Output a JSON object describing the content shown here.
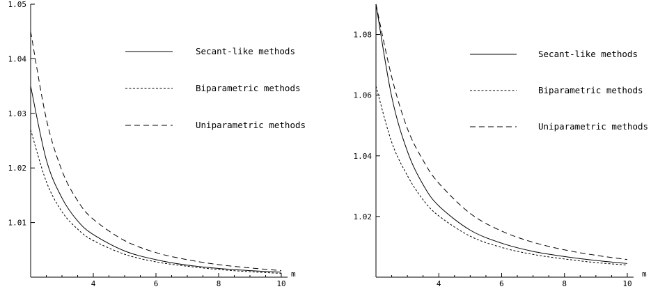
{
  "chart_data": [
    {
      "type": "line",
      "title": "",
      "xlabel": "m",
      "ylabel": "",
      "xlim": [
        2,
        10.2
      ],
      "ylim": [
        1.0,
        1.05
      ],
      "xticks": [
        4,
        6,
        8,
        10
      ],
      "yticks": [
        1.01,
        1.02,
        1.03,
        1.04,
        1.05
      ],
      "xtick_labels": [
        "4",
        "6",
        "8",
        "10"
      ],
      "ytick_labels": [
        "1.01",
        "1.02",
        "1.03",
        "1.04",
        "1.05"
      ],
      "grid": false,
      "legend": "top-right",
      "series": [
        {
          "name": "Secant-like methods",
          "style": "solid",
          "x": [
            2,
            2.5,
            3,
            3.5,
            4,
            5,
            6,
            7,
            8,
            9,
            10
          ],
          "y": [
            1.035,
            1.0215,
            1.0145,
            1.0103,
            1.0078,
            1.0048,
            1.0032,
            1.0022,
            1.0016,
            1.0012,
            1.0009
          ]
        },
        {
          "name": "Biparametric methods",
          "style": "dotted",
          "x": [
            2,
            2.5,
            3,
            3.5,
            4,
            5,
            6,
            7,
            8,
            9,
            10
          ],
          "y": [
            1.027,
            1.0175,
            1.012,
            1.0088,
            1.0067,
            1.0042,
            1.0028,
            1.002,
            1.0014,
            1.001,
            1.0007
          ]
        },
        {
          "name": "Uniparametric methods",
          "style": "dashed",
          "x": [
            2,
            2.5,
            3,
            3.5,
            4,
            5,
            6,
            7,
            8,
            9,
            10
          ],
          "y": [
            1.045,
            1.029,
            1.0195,
            1.014,
            1.0106,
            1.0067,
            1.0045,
            1.0032,
            1.0023,
            1.0017,
            1.0012
          ]
        }
      ]
    },
    {
      "type": "line",
      "title": "",
      "xlabel": "m",
      "ylabel": "",
      "xlim": [
        2,
        10.2
      ],
      "ylim": [
        1.0,
        1.09
      ],
      "xticks": [
        4,
        6,
        8,
        10
      ],
      "yticks": [
        1.02,
        1.04,
        1.06,
        1.08
      ],
      "xtick_labels": [
        "4",
        "6",
        "8",
        "10"
      ],
      "ytick_labels": [
        "1.02",
        "1.04",
        "1.06",
        "1.08"
      ],
      "grid": false,
      "legend": "top-right",
      "series": [
        {
          "name": "Secant-like methods",
          "style": "solid",
          "x": [
            2,
            2.5,
            3,
            3.5,
            4,
            5,
            6,
            7,
            8,
            9,
            10
          ],
          "y": [
            1.09,
            1.0595,
            1.0415,
            1.0305,
            1.0235,
            1.0155,
            1.0112,
            1.0085,
            1.0068,
            1.0055,
            1.0045
          ]
        },
        {
          "name": "Biparametric methods",
          "style": "dotted",
          "x": [
            2,
            2.5,
            3,
            3.5,
            4,
            5,
            6,
            7,
            8,
            9,
            10
          ],
          "y": [
            1.063,
            1.0445,
            1.0335,
            1.0255,
            1.0202,
            1.0135,
            1.0098,
            1.0075,
            1.006,
            1.0048,
            1.004
          ]
        },
        {
          "name": "Uniparametric methods",
          "style": "dashed",
          "x": [
            2,
            2.5,
            3,
            3.5,
            4,
            5,
            6,
            7,
            8,
            9,
            10
          ],
          "y": [
            1.09,
            1.066,
            1.049,
            1.0385,
            1.031,
            1.021,
            1.0152,
            1.0115,
            1.009,
            1.0072,
            1.0058
          ]
        }
      ]
    }
  ]
}
